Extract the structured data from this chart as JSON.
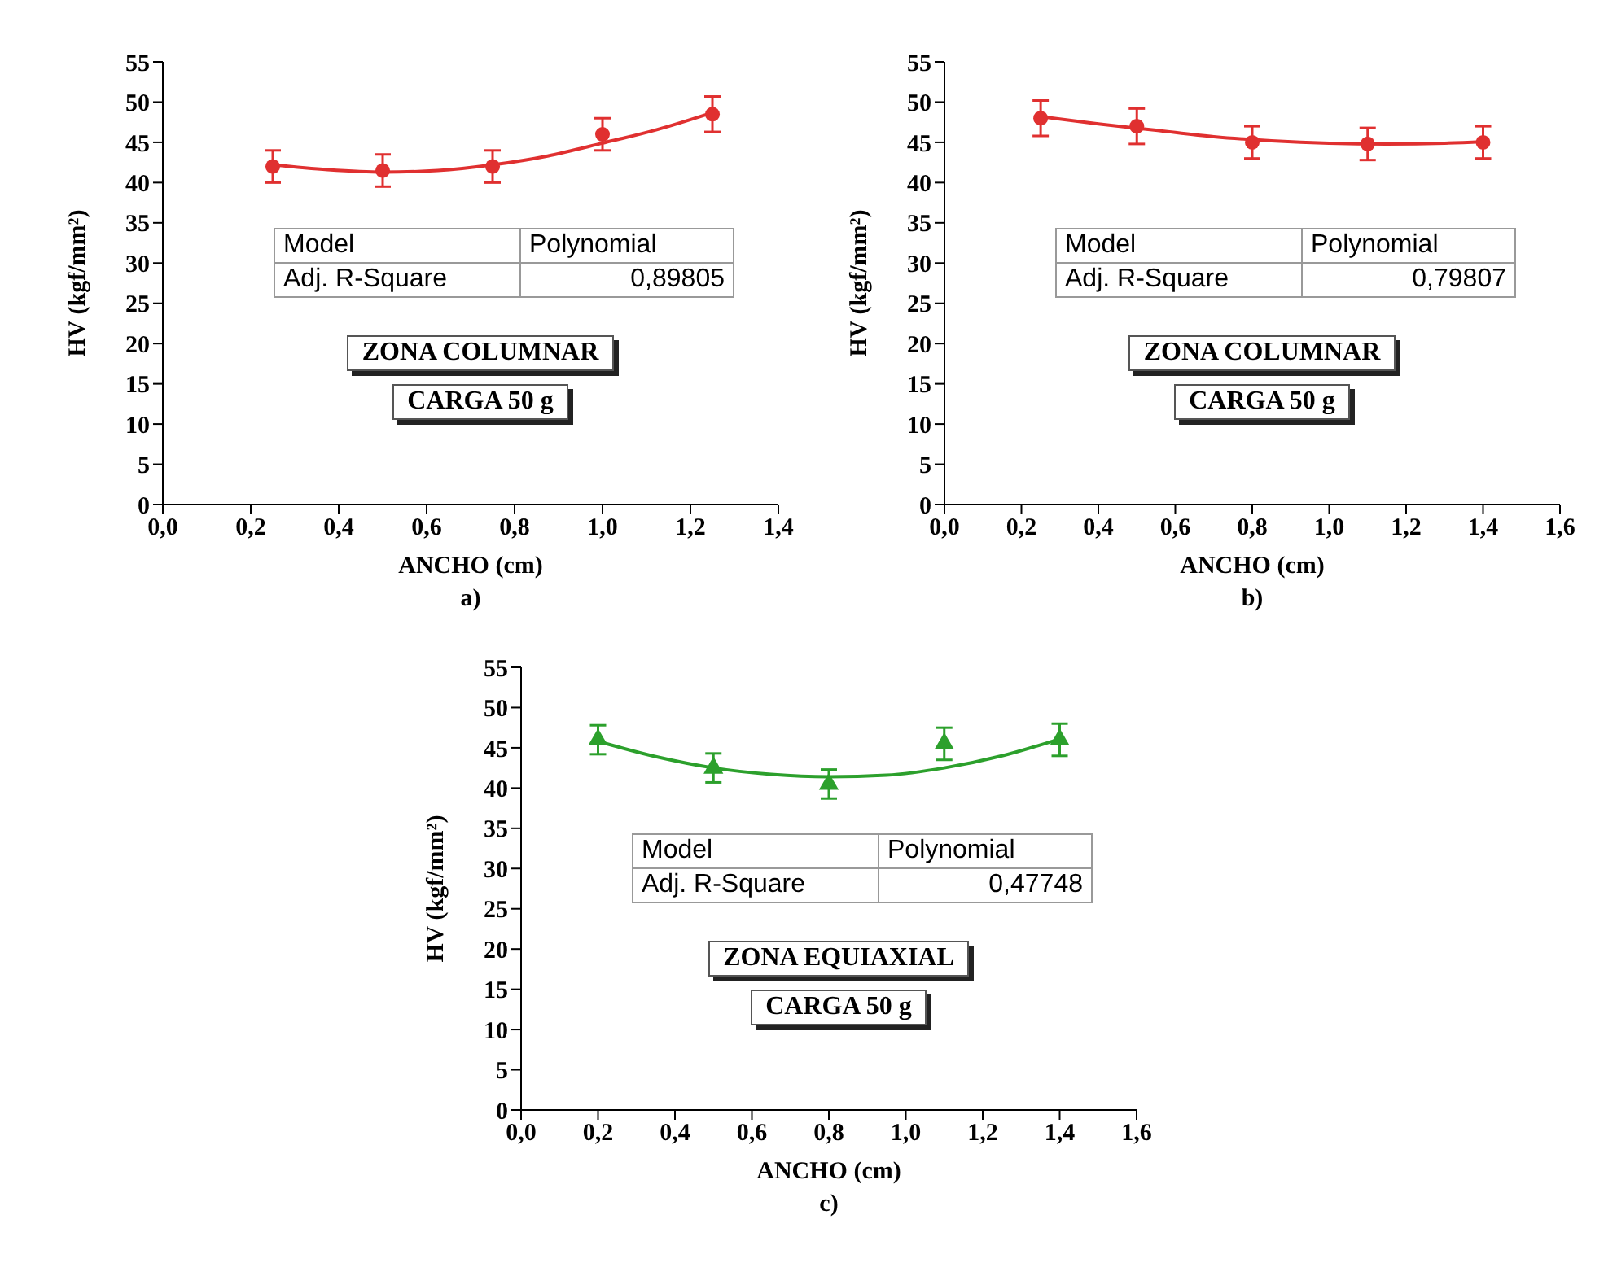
{
  "chart_data": [
    {
      "type": "scatter",
      "xlabel": "ANCHO (cm)",
      "ylabel": "HV (kgf/mm²)",
      "xlim": [
        0,
        1.4
      ],
      "xticks": [
        {
          "value": 0,
          "label": "0,0"
        },
        {
          "value": 0.2,
          "label": "0,2"
        },
        {
          "value": 0.4,
          "label": "0,4"
        },
        {
          "value": 0.6,
          "label": "0,6"
        },
        {
          "value": 0.8,
          "label": "0,8"
        },
        {
          "value": 1,
          "label": "1,0"
        },
        {
          "value": 1.2,
          "label": "1,2"
        },
        {
          "value": 1.4,
          "label": "1,4"
        }
      ],
      "ylim": [
        0,
        55
      ],
      "yticks": [
        0,
        5,
        10,
        15,
        20,
        25,
        30,
        35,
        40,
        45,
        50,
        55
      ],
      "annotations": [
        "Model",
        "Polynomial",
        "Adj. R-Square",
        "0,89805",
        "ZONA COLUMNAR",
        "CARGA 50 g",
        "a)"
      ],
      "series": [
        {
          "marker": "circle",
          "color": "#e03030",
          "x": [
            0.25,
            0.5,
            0.75,
            1.0,
            1.25
          ],
          "values": [
            42,
            41.5,
            42,
            46,
            48.5
          ],
          "errors": [
            2,
            2,
            2,
            2,
            2.2
          ]
        },
        {
          "type": "line",
          "marker": "none",
          "color": "#e03030",
          "x": [
            0.25,
            0.375,
            0.5,
            0.625,
            0.75,
            0.875,
            1.0,
            1.125,
            1.25
          ],
          "values": [
            42.2,
            41.6,
            41.3,
            41.5,
            42.2,
            43.3,
            44.9,
            46.6,
            48.7
          ]
        }
      ]
    },
    {
      "type": "scatter",
      "xlabel": "ANCHO (cm)",
      "ylabel": "HV (kgf/mm²)",
      "xlim": [
        0,
        1.6
      ],
      "xticks": [
        {
          "value": 0,
          "label": "0,0"
        },
        {
          "value": 0.2,
          "label": "0,2"
        },
        {
          "value": 0.4,
          "label": "0,4"
        },
        {
          "value": 0.6,
          "label": "0,6"
        },
        {
          "value": 0.8,
          "label": "0,8"
        },
        {
          "value": 1,
          "label": "1,0"
        },
        {
          "value": 1.2,
          "label": "1,2"
        },
        {
          "value": 1.4,
          "label": "1,4"
        },
        {
          "value": 1.6,
          "label": "1,6"
        }
      ],
      "ylim": [
        0,
        55
      ],
      "yticks": [
        0,
        5,
        10,
        15,
        20,
        25,
        30,
        35,
        40,
        45,
        50,
        55
      ],
      "annotations": [
        "Model",
        "Polynomial",
        "Adj. R-Square",
        "0,79807",
        "ZONA COLUMNAR",
        "CARGA 50 g",
        "b)"
      ],
      "series": [
        {
          "marker": "circle",
          "color": "#e03030",
          "x": [
            0.25,
            0.5,
            0.8,
            1.1,
            1.4
          ],
          "values": [
            48,
            47,
            45,
            44.8,
            45
          ],
          "errors": [
            2.2,
            2.2,
            2,
            2,
            2
          ]
        },
        {
          "type": "line",
          "marker": "none",
          "color": "#e03030",
          "x": [
            0.25,
            0.4,
            0.55,
            0.7,
            0.85,
            1.0,
            1.15,
            1.3,
            1.4
          ],
          "values": [
            48.2,
            47.3,
            46.5,
            45.7,
            45.2,
            44.9,
            44.8,
            44.9,
            45.1
          ]
        }
      ]
    },
    {
      "type": "scatter",
      "xlabel": "ANCHO (cm)",
      "ylabel": "HV (kgf/mm²)",
      "xlim": [
        0,
        1.6
      ],
      "xticks": [
        {
          "value": 0,
          "label": "0,0"
        },
        {
          "value": 0.2,
          "label": "0,2"
        },
        {
          "value": 0.4,
          "label": "0,4"
        },
        {
          "value": 0.6,
          "label": "0,6"
        },
        {
          "value": 0.8,
          "label": "0,8"
        },
        {
          "value": 1,
          "label": "1,0"
        },
        {
          "value": 1.2,
          "label": "1,2"
        },
        {
          "value": 1.4,
          "label": "1,4"
        },
        {
          "value": 1.6,
          "label": "1,6"
        }
      ],
      "ylim": [
        0,
        55
      ],
      "yticks": [
        0,
        5,
        10,
        15,
        20,
        25,
        30,
        35,
        40,
        45,
        50,
        55
      ],
      "annotations": [
        "Model",
        "Polynomial",
        "Adj. R-Square",
        "0,47748",
        "ZONA EQUIAXIAL",
        "CARGA 50 g",
        "c)"
      ],
      "series": [
        {
          "marker": "triangle",
          "color": "#2ca02c",
          "x": [
            0.2,
            0.5,
            0.8,
            1.1,
            1.4
          ],
          "values": [
            46,
            42.5,
            40.5,
            45.5,
            46
          ],
          "errors": [
            1.8,
            1.8,
            1.8,
            2,
            2
          ]
        },
        {
          "type": "line",
          "marker": "none",
          "color": "#2ca02c",
          "x": [
            0.2,
            0.35,
            0.5,
            0.65,
            0.8,
            0.95,
            1.1,
            1.25,
            1.4
          ],
          "values": [
            45.8,
            43.9,
            42.5,
            41.7,
            41.4,
            41.6,
            42.5,
            44.0,
            46.1
          ]
        }
      ]
    }
  ]
}
